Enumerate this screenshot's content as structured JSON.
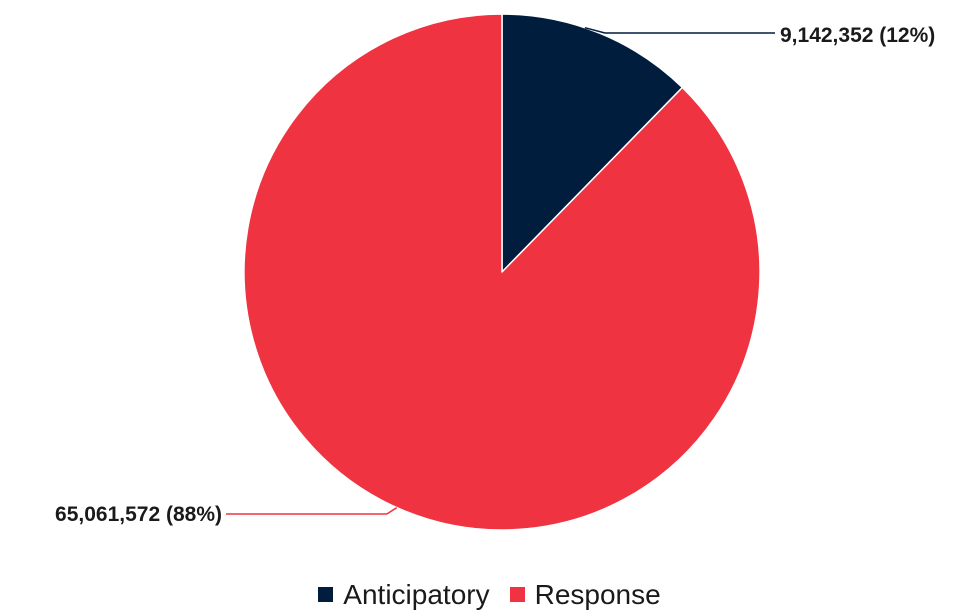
{
  "chart_data": {
    "type": "pie",
    "title": "",
    "slices": [
      {
        "name": "Anticipatory",
        "value": 9142352,
        "percent": 12,
        "label": "9,142,352 (12%)",
        "color": "#001d3d"
      },
      {
        "name": "Response",
        "value": 65061572,
        "percent": 88,
        "label": "65,061,572 (88%)",
        "color": "#ef3340"
      }
    ],
    "start_angle_deg": 0,
    "direction": "clockwise",
    "legend": {
      "position": "bottom",
      "entries": [
        "Anticipatory",
        "Response"
      ]
    }
  }
}
